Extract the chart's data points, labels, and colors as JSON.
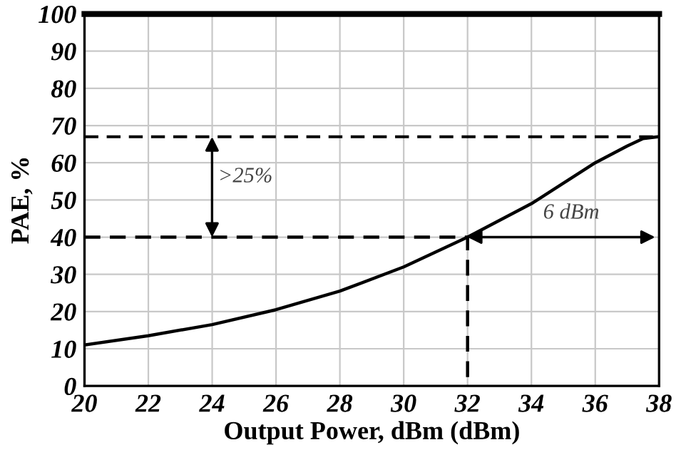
{
  "chart_data": {
    "type": "line",
    "xlabel": "Output Power, dBm (dBm)",
    "ylabel": "PAE, %",
    "series": [
      {
        "x": [
          20,
          22,
          24,
          26,
          28,
          30,
          32,
          33,
          34,
          35,
          36,
          37,
          37.5,
          38
        ],
        "values": [
          11,
          13.5,
          16.5,
          20.5,
          25.5,
          32,
          40,
          44.5,
          49,
          54.5,
          60,
          64.5,
          66.5,
          67
        ],
        "color": "#000000",
        "line_style": "solid"
      },
      {
        "x": [
          20,
          32,
          32
        ],
        "values": [
          40,
          40,
          0
        ],
        "color": "#000000",
        "line_style": "dashed"
      }
    ],
    "ref_lines": [
      {
        "axis": "y",
        "value": 67,
        "color": "#000000",
        "line_style": "dashed"
      }
    ],
    "annotations": [
      ">25%",
      "6 dBm"
    ],
    "xlim": [
      20,
      38
    ],
    "xticks": [
      20,
      22,
      24,
      26,
      28,
      30,
      32,
      34,
      36,
      38
    ],
    "ylim": [
      0,
      100
    ],
    "yticks": [
      0,
      10,
      20,
      30,
      40,
      50,
      60,
      70,
      80,
      90,
      100
    ],
    "grid": true,
    "marker": "none"
  }
}
